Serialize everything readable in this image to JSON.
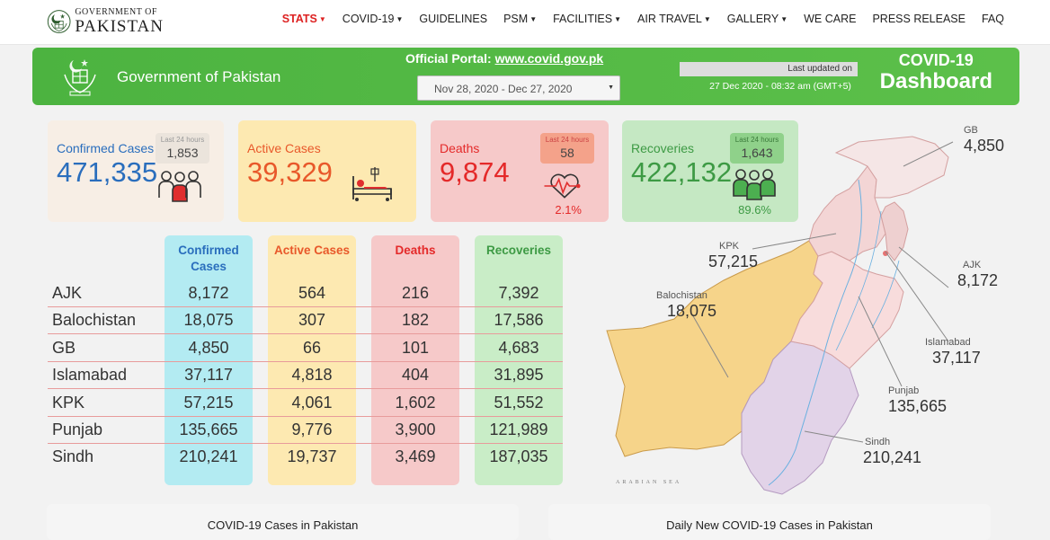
{
  "nav": {
    "logo_line1": "GOVERNMENT OF",
    "logo_line2": "PAKISTAN",
    "items": [
      "STATS",
      "COVID-19",
      "GUIDELINES",
      "PSM",
      "FACILITIES",
      "AIR TRAVEL",
      "GALLERY",
      "WE CARE",
      "PRESS RELEASE",
      "FAQ"
    ],
    "active": "STATS"
  },
  "banner": {
    "gov_name": "Government of Pakistan",
    "portal_label": "Official Portal:",
    "portal_link": "www.covid.gov.pk",
    "date_range": "Nov 28, 2020 - Dec 27, 2020",
    "last_updated_label": "Last updated on",
    "last_updated_time": "27 Dec 2020 - 08:32 am (GMT+5)",
    "title1": "COVID-19",
    "title2": "Dashboard",
    "color": "#4cb340"
  },
  "cards": {
    "confirmed": {
      "label": "Confirmed Cases",
      "value": "471,335",
      "last24_label": "Last 24 hours",
      "last24": "1,853",
      "color": "#2a6ebd"
    },
    "active": {
      "label": "Active Cases",
      "value": "39,329",
      "color": "#e8582a"
    },
    "deaths": {
      "label": "Deaths",
      "value": "9,874",
      "last24_label": "Last 24 hours",
      "last24": "58",
      "pct": "2.1%",
      "color": "#e42929"
    },
    "recoveries": {
      "label": "Recoveries",
      "value": "422,132",
      "last24_label": "Last 24 hours",
      "last24": "1,643",
      "pct": "89.6%",
      "color": "#3d9a44"
    }
  },
  "table": {
    "headers": {
      "confirmed": "Confirmed Cases",
      "active": "Active Cases",
      "deaths": "Deaths",
      "recoveries": "Recoveries"
    },
    "rows": [
      {
        "name": "AJK",
        "confirmed": "8,172",
        "active": "564",
        "deaths": "216",
        "recoveries": "7,392"
      },
      {
        "name": "Balochistan",
        "confirmed": "18,075",
        "active": "307",
        "deaths": "182",
        "recoveries": "17,586"
      },
      {
        "name": "GB",
        "confirmed": "4,850",
        "active": "66",
        "deaths": "101",
        "recoveries": "4,683"
      },
      {
        "name": "Islamabad",
        "confirmed": "37,117",
        "active": "4,818",
        "deaths": "404",
        "recoveries": "31,895"
      },
      {
        "name": "KPK",
        "confirmed": "57,215",
        "active": "4,061",
        "deaths": "1,602",
        "recoveries": "51,552"
      },
      {
        "name": "Punjab",
        "confirmed": "135,665",
        "active": "9,776",
        "deaths": "3,900",
        "recoveries": "121,989"
      },
      {
        "name": "Sindh",
        "confirmed": "210,241",
        "active": "19,737",
        "deaths": "3,469",
        "recoveries": "187,035"
      }
    ]
  },
  "map": {
    "sea_label": "ARABIAN SEA",
    "labels": {
      "gb": {
        "name": "GB",
        "value": "4,850"
      },
      "kpk": {
        "name": "KPK",
        "value": "57,215"
      },
      "ajk": {
        "name": "AJK",
        "value": "8,172"
      },
      "balochistan": {
        "name": "Balochistan",
        "value": "18,075"
      },
      "islamabad": {
        "name": "Islamabad",
        "value": "37,117"
      },
      "punjab": {
        "name": "Punjab",
        "value": "135,665"
      },
      "sindh": {
        "name": "Sindh",
        "value": "210,241"
      }
    }
  },
  "bottom": {
    "chart1_title": "COVID-19 Cases in Pakistan",
    "chart2_title": "Daily New COVID-19 Cases in Pakistan"
  }
}
